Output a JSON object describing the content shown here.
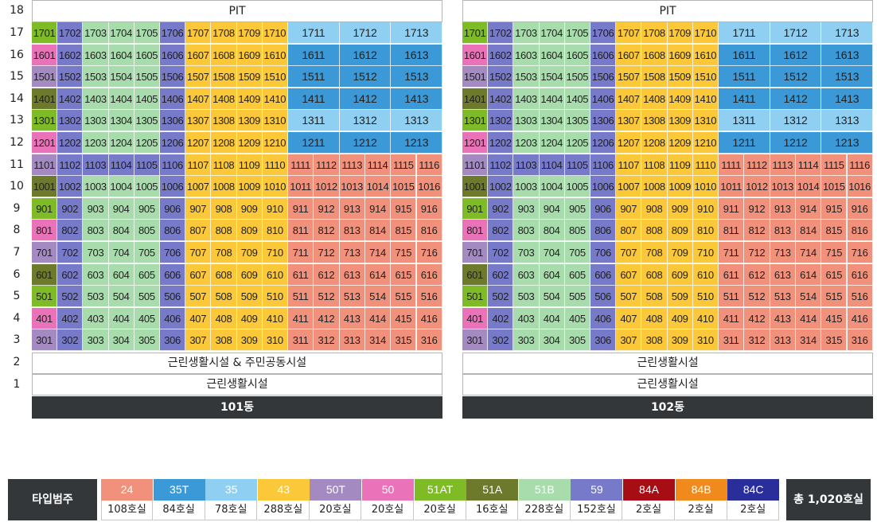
{
  "floor_labels": [
    "18",
    "17",
    "16",
    "15",
    "14",
    "13",
    "12",
    "11",
    "10",
    "9",
    "8",
    "7",
    "6",
    "5",
    "4",
    "3",
    "2",
    "1"
  ],
  "colors": {
    "24": "#f2917b",
    "35T": "#3a99d6",
    "35": "#8fd0f2",
    "43": "#fbc83a",
    "50T": "#a38ac1",
    "50": "#ea72b8",
    "51AT": "#7ebb27",
    "51A": "#6d7a2c",
    "51B": "#a9dcac",
    "59": "#7779c9",
    "84A": "#a60d15",
    "84B": "#f08a1c",
    "84C": "#2a2e9a"
  },
  "buildings": [
    {
      "name": "101동",
      "pit_label": "PIT",
      "floor2_label": "근린생활시설 & 주민공동시설",
      "floor1_label": "근린생활시설"
    },
    {
      "name": "102동",
      "pit_label": "PIT",
      "floor2_label": "근린생활시설",
      "floor1_label": "근린생활시설"
    }
  ],
  "unit_rows": [
    {
      "floor": 17,
      "types": [
        "51AT",
        "59",
        "51B",
        "51B",
        "51B",
        "59",
        "43",
        "43",
        "43",
        "43",
        "35",
        "35",
        "35"
      ]
    },
    {
      "floor": 16,
      "types": [
        "50",
        "59",
        "51B",
        "51B",
        "51B",
        "59",
        "43",
        "43",
        "43",
        "43",
        "35T",
        "35T",
        "35T"
      ]
    },
    {
      "floor": 15,
      "types": [
        "50T",
        "59",
        "51B",
        "51B",
        "51B",
        "59",
        "43",
        "43",
        "43",
        "43",
        "35T",
        "35T",
        "35T"
      ]
    },
    {
      "floor": 14,
      "types": [
        "51A",
        "59",
        "51B",
        "51B",
        "51B",
        "59",
        "43",
        "43",
        "43",
        "43",
        "35T",
        "35T",
        "35T"
      ]
    },
    {
      "floor": 13,
      "types": [
        "51AT",
        "59",
        "51B",
        "51B",
        "51B",
        "59",
        "43",
        "43",
        "43",
        "43",
        "35",
        "35",
        "35"
      ]
    },
    {
      "floor": 12,
      "types": [
        "50",
        "59",
        "51B",
        "51B",
        "51B",
        "59",
        "43",
        "43",
        "43",
        "43",
        "35T",
        "35T",
        "35T"
      ]
    },
    {
      "floor": 11,
      "types": [
        "50T",
        "59",
        "59",
        "59",
        "59",
        "59",
        "43",
        "43",
        "43",
        "43",
        "24",
        "24",
        "24",
        "24",
        "24",
        "24"
      ]
    },
    {
      "floor": 10,
      "types": [
        "51A",
        "59",
        "51B",
        "51B",
        "51B",
        "59",
        "43",
        "43",
        "43",
        "43",
        "24",
        "24",
        "24",
        "24",
        "24",
        "24"
      ]
    },
    {
      "floor": 9,
      "types": [
        "51AT",
        "59",
        "51B",
        "51B",
        "51B",
        "59",
        "43",
        "43",
        "43",
        "43",
        "24",
        "24",
        "24",
        "24",
        "24",
        "24"
      ]
    },
    {
      "floor": 8,
      "types": [
        "50",
        "59",
        "51B",
        "51B",
        "51B",
        "59",
        "43",
        "43",
        "43",
        "43",
        "24",
        "24",
        "24",
        "24",
        "24",
        "24"
      ]
    },
    {
      "floor": 7,
      "types": [
        "50T",
        "59",
        "51B",
        "51B",
        "51B",
        "59",
        "43",
        "43",
        "43",
        "43",
        "24",
        "24",
        "24",
        "24",
        "24",
        "24"
      ]
    },
    {
      "floor": 6,
      "types": [
        "51A",
        "59",
        "51B",
        "51B",
        "51B",
        "59",
        "43",
        "43",
        "43",
        "43",
        "24",
        "24",
        "24",
        "24",
        "24",
        "24"
      ]
    },
    {
      "floor": 5,
      "types": [
        "51AT",
        "59",
        "51B",
        "51B",
        "51B",
        "59",
        "43",
        "43",
        "43",
        "43",
        "24",
        "24",
        "24",
        "24",
        "24",
        "24"
      ]
    },
    {
      "floor": 4,
      "types": [
        "50",
        "59",
        "51B",
        "51B",
        "51B",
        "59",
        "43",
        "43",
        "43",
        "43",
        "24",
        "24",
        "24",
        "24",
        "24",
        "24"
      ]
    },
    {
      "floor": 3,
      "types": [
        "50T",
        "59",
        "51B",
        "51B",
        "51B",
        "59",
        "43",
        "43",
        "43",
        "43",
        "24",
        "24",
        "24",
        "24",
        "24",
        "24"
      ]
    }
  ],
  "legend": {
    "title": "타입범주",
    "total": "총 1,020호실",
    "items": [
      {
        "type": "24",
        "count": "108호실"
      },
      {
        "type": "35T",
        "count": "84호실"
      },
      {
        "type": "35",
        "count": "78호실"
      },
      {
        "type": "43",
        "count": "288호실"
      },
      {
        "type": "50T",
        "count": "20호실"
      },
      {
        "type": "50",
        "count": "20호실"
      },
      {
        "type": "51AT",
        "count": "20호실"
      },
      {
        "type": "51A",
        "count": "16호실"
      },
      {
        "type": "51B",
        "count": "228호실"
      },
      {
        "type": "59",
        "count": "152호실"
      },
      {
        "type": "84A",
        "count": "2호실"
      },
      {
        "type": "84B",
        "count": "2호실"
      },
      {
        "type": "84C",
        "count": "2호실"
      }
    ]
  }
}
